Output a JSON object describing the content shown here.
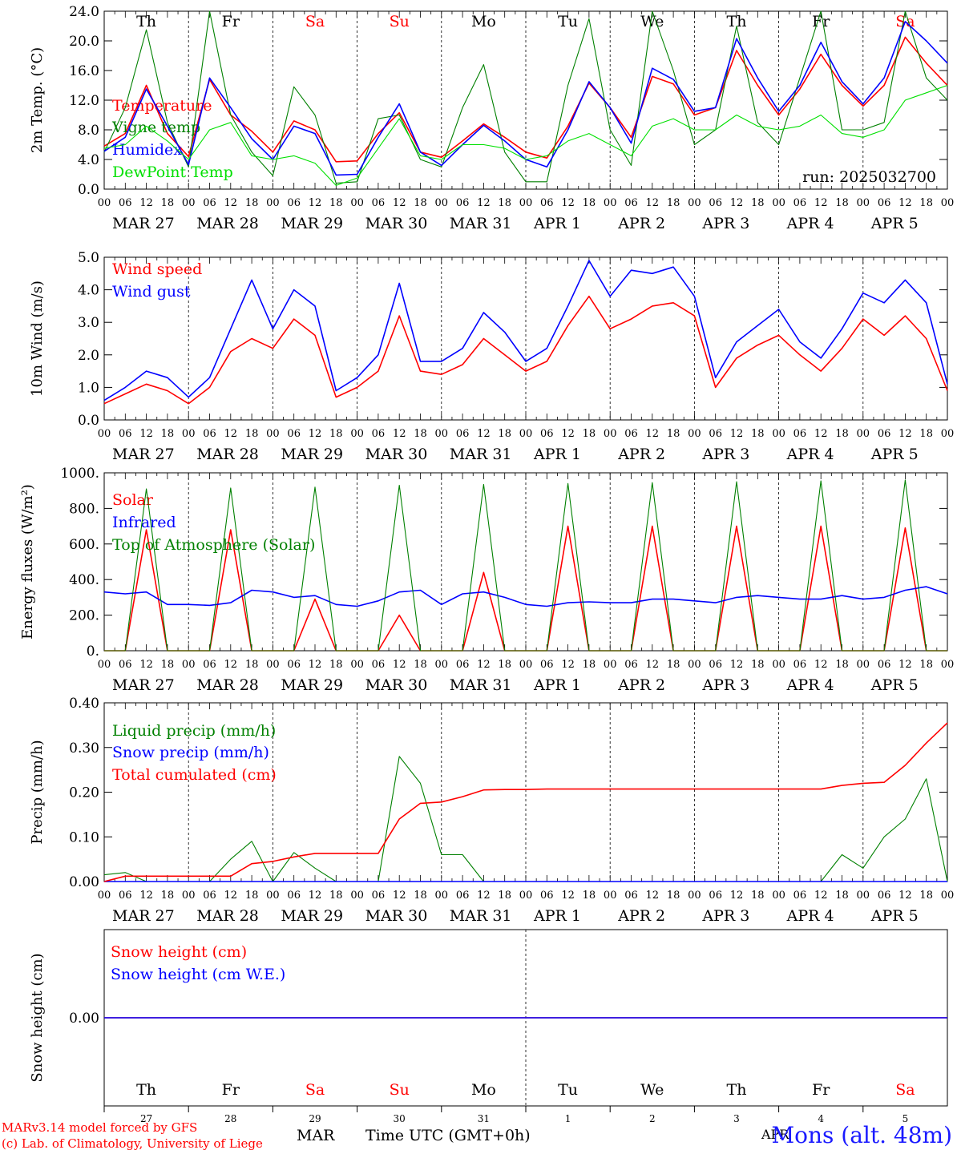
{
  "run_label": "run: 2025032700",
  "station": "Mons (alt. 48m)",
  "footer": {
    "model": "MARv3.14 model forced by GFS",
    "lab": "(c) Lab. of Climatology, University of Liege",
    "month_left": "MAR",
    "month_right": "APR",
    "time_axis": "Time UTC (GMT+0h)"
  },
  "days": [
    {
      "dow": "Th",
      "date": "MAR 27",
      "num": "27",
      "weekend": false
    },
    {
      "dow": "Fr",
      "date": "MAR 28",
      "num": "28",
      "weekend": false
    },
    {
      "dow": "Sa",
      "date": "MAR 29",
      "num": "29",
      "weekend": true
    },
    {
      "dow": "Su",
      "date": "MAR 30",
      "num": "30",
      "weekend": true
    },
    {
      "dow": "Mo",
      "date": "MAR 31",
      "num": "31",
      "weekend": false
    },
    {
      "dow": "Tu",
      "date": "APR 1",
      "num": "1",
      "weekend": false
    },
    {
      "dow": "We",
      "date": "APR 2",
      "num": "2",
      "weekend": false
    },
    {
      "dow": "Th",
      "date": "APR 3",
      "num": "3",
      "weekend": false
    },
    {
      "dow": "Fr",
      "date": "APR 4",
      "num": "4",
      "weekend": false
    },
    {
      "dow": "Sa",
      "date": "APR 5",
      "num": "5",
      "weekend": true
    }
  ],
  "hour_ticks": [
    "00",
    "06",
    "12",
    "18"
  ],
  "hour_end": "00",
  "colors": {
    "red": "#ff0000",
    "blue": "#0000ff",
    "green": "#008000",
    "lightgreen": "#00e000",
    "weekend": "#ff0000",
    "text": "#000000"
  },
  "chart_data": [
    {
      "type": "line",
      "ylabel": "2m Temp. (°C)",
      "ylim": [
        0,
        24
      ],
      "yticks": [
        "0.0",
        "4.0",
        "8.0",
        "12.0",
        "16.0",
        "20.0",
        "24.0"
      ],
      "x_hours": [
        0,
        6,
        12,
        18,
        24,
        30,
        36,
        42,
        48,
        54,
        60,
        66,
        72,
        78,
        84,
        90,
        96,
        102,
        108,
        114,
        120,
        126,
        132,
        138,
        144,
        150,
        156,
        162,
        168,
        174,
        180,
        186,
        192,
        198,
        204,
        210,
        216,
        222,
        228,
        234,
        240
      ],
      "series": [
        {
          "name": "Temperature",
          "color": "red",
          "values": [
            5.8,
            7.5,
            14,
            7.5,
            4.4,
            14.8,
            10,
            7.8,
            5.0,
            9.2,
            8.0,
            3.7,
            3.8,
            7.5,
            10.3,
            5.0,
            4.3,
            6.5,
            8.8,
            7.0,
            5.0,
            4.2,
            8.5,
            14.3,
            11,
            7.0,
            15.2,
            14.2,
            10.0,
            11.0,
            18.7,
            14,
            10.0,
            13.5,
            18.2,
            14,
            11.2,
            14,
            20.5,
            17,
            14
          ]
        },
        {
          "name": "Vigne temp",
          "color": "green",
          "values": [
            5.0,
            11,
            21.5,
            9,
            3.0,
            24,
            10,
            5,
            1.8,
            13.8,
            10,
            0.8,
            1.0,
            9.5,
            10,
            4.0,
            3.0,
            11,
            16.8,
            5,
            1.0,
            1.0,
            14,
            23,
            8,
            3.2,
            24,
            16,
            6.0,
            8,
            22,
            9,
            6.0,
            15,
            24,
            8,
            8,
            9,
            24,
            15,
            12
          ]
        },
        {
          "name": "Humidex",
          "color": "blue",
          "values": [
            5.1,
            7,
            13.5,
            8.5,
            3.3,
            15,
            11,
            6.8,
            4.0,
            8.5,
            7.5,
            1.9,
            2.0,
            7.0,
            11.5,
            5,
            3.2,
            6,
            8.6,
            6.5,
            4.0,
            3.0,
            8,
            14.5,
            11,
            6.2,
            16.3,
            14.8,
            10.5,
            11,
            20.3,
            15,
            10.5,
            14,
            19.8,
            14.5,
            11.5,
            15,
            22.6,
            20,
            17
          ]
        },
        {
          "name": "DewPoint Temp",
          "color": "lightgreen",
          "values": [
            5.5,
            6,
            8.5,
            6.5,
            4.0,
            8,
            9,
            4.5,
            4.0,
            4.5,
            3.5,
            0.5,
            1.5,
            5.5,
            9.5,
            4.5,
            4.0,
            6,
            6,
            5.5,
            4.0,
            4.5,
            6.5,
            7.5,
            6,
            4.5,
            8.5,
            9.5,
            8.0,
            8,
            10,
            8.5,
            8.0,
            8.5,
            10,
            7.5,
            7.0,
            8,
            12,
            13,
            14
          ]
        }
      ]
    },
    {
      "type": "line",
      "ylabel": "10m Wind (m/s)",
      "ylim": [
        0,
        5
      ],
      "yticks": [
        "0.0",
        "1.0",
        "2.0",
        "3.0",
        "4.0",
        "5.0"
      ],
      "x_hours": [
        0,
        6,
        12,
        18,
        24,
        30,
        36,
        42,
        48,
        54,
        60,
        66,
        72,
        78,
        84,
        90,
        96,
        102,
        108,
        114,
        120,
        126,
        132,
        138,
        144,
        150,
        156,
        162,
        168,
        174,
        180,
        186,
        192,
        198,
        204,
        210,
        216,
        222,
        228,
        234,
        240
      ],
      "series": [
        {
          "name": "Wind speed",
          "color": "red",
          "values": [
            0.5,
            0.8,
            1.1,
            0.9,
            0.5,
            1.0,
            2.1,
            2.5,
            2.2,
            3.1,
            2.6,
            0.7,
            1.0,
            1.5,
            3.2,
            1.5,
            1.4,
            1.7,
            2.5,
            2.0,
            1.5,
            1.8,
            2.9,
            3.8,
            2.8,
            3.1,
            3.5,
            3.6,
            3.2,
            1.0,
            1.9,
            2.3,
            2.6,
            2.0,
            1.5,
            2.2,
            3.1,
            2.6,
            3.2,
            2.5,
            0.9
          ]
        },
        {
          "name": "Wind gust",
          "color": "blue",
          "values": [
            0.6,
            1.0,
            1.5,
            1.3,
            0.7,
            1.3,
            2.8,
            4.3,
            2.8,
            4.0,
            3.5,
            0.9,
            1.3,
            2.0,
            4.2,
            1.8,
            1.8,
            2.2,
            3.3,
            2.7,
            1.8,
            2.2,
            3.5,
            4.9,
            3.8,
            4.6,
            4.5,
            4.7,
            3.8,
            1.3,
            2.4,
            2.9,
            3.4,
            2.4,
            1.9,
            2.8,
            3.9,
            3.6,
            4.3,
            3.6,
            1.1
          ]
        }
      ]
    },
    {
      "type": "line",
      "ylabel": "Energy fluxes (W/m²)",
      "ylim": [
        0,
        1000
      ],
      "yticks": [
        "0.",
        "200.",
        "400.",
        "600.",
        "800.",
        "1000."
      ],
      "x_hours": [
        0,
        6,
        12,
        18,
        24,
        30,
        36,
        42,
        48,
        54,
        60,
        66,
        72,
        78,
        84,
        90,
        96,
        102,
        108,
        114,
        120,
        126,
        132,
        138,
        144,
        150,
        156,
        162,
        168,
        174,
        180,
        186,
        192,
        198,
        204,
        210,
        216,
        222,
        228,
        234,
        240
      ],
      "series": [
        {
          "name": "Solar",
          "color": "red",
          "values": [
            0,
            0,
            680,
            0,
            0,
            0,
            680,
            0,
            0,
            0,
            290,
            0,
            0,
            0,
            200,
            0,
            0,
            0,
            440,
            0,
            0,
            0,
            700,
            0,
            0,
            0,
            700,
            0,
            0,
            0,
            700,
            0,
            0,
            0,
            700,
            0,
            0,
            0,
            690,
            0,
            0
          ]
        },
        {
          "name": "Infrared",
          "color": "blue",
          "values": [
            330,
            320,
            330,
            260,
            260,
            255,
            270,
            340,
            330,
            300,
            310,
            260,
            250,
            280,
            330,
            340,
            260,
            320,
            330,
            300,
            260,
            250,
            270,
            275,
            270,
            270,
            290,
            290,
            280,
            270,
            300,
            310,
            300,
            290,
            290,
            310,
            290,
            300,
            340,
            360,
            320
          ]
        },
        {
          "name": "Top of Atmosphere (Solar)",
          "color": "green",
          "values": [
            0,
            0,
            910,
            0,
            0,
            0,
            915,
            0,
            0,
            0,
            920,
            0,
            0,
            0,
            930,
            0,
            0,
            0,
            935,
            0,
            0,
            0,
            940,
            0,
            0,
            0,
            945,
            0,
            0,
            0,
            950,
            0,
            0,
            0,
            955,
            0,
            0,
            0,
            960,
            0,
            0
          ]
        }
      ]
    },
    {
      "type": "line",
      "ylabel": "Precip (mm/h)",
      "ylim": [
        0,
        0.4
      ],
      "yticks": [
        "0.00",
        "0.10",
        "0.20",
        "0.30",
        "0.40"
      ],
      "x_hours": [
        0,
        6,
        12,
        18,
        24,
        30,
        36,
        42,
        48,
        54,
        60,
        66,
        72,
        78,
        84,
        90,
        96,
        102,
        108,
        114,
        120,
        126,
        132,
        138,
        144,
        150,
        156,
        162,
        168,
        174,
        180,
        186,
        192,
        198,
        204,
        210,
        216,
        222,
        228,
        234,
        240
      ],
      "series": [
        {
          "name": "Liquid precip (mm/h)",
          "color": "green",
          "values": [
            0.015,
            0.02,
            0.0,
            0.0,
            0.0,
            0.0,
            0.05,
            0.09,
            0.0,
            0.065,
            0.03,
            0.0,
            0.0,
            0.0,
            0.28,
            0.22,
            0.06,
            0.06,
            0.0,
            0.0,
            0.0,
            0.0,
            0.0,
            0.0,
            0.0,
            0.0,
            0.0,
            0.0,
            0.0,
            0.0,
            0.0,
            0.0,
            0.0,
            0.0,
            0.0,
            0.06,
            0.03,
            0.1,
            0.14,
            0.23,
            0.0
          ]
        },
        {
          "name": "Snow precip (mm/h)",
          "color": "blue",
          "values": [
            0,
            0,
            0,
            0,
            0,
            0,
            0,
            0,
            0,
            0,
            0,
            0,
            0,
            0,
            0,
            0,
            0,
            0,
            0,
            0,
            0,
            0,
            0,
            0,
            0,
            0,
            0,
            0,
            0,
            0,
            0,
            0,
            0,
            0,
            0,
            0,
            0,
            0,
            0,
            0,
            0
          ]
        },
        {
          "name": "Total cumulated (cm)",
          "color": "red",
          "values": [
            0.0,
            0.012,
            0.012,
            0.012,
            0.012,
            0.012,
            0.012,
            0.04,
            0.045,
            0.055,
            0.063,
            0.063,
            0.063,
            0.063,
            0.14,
            0.175,
            0.178,
            0.19,
            0.205,
            0.206,
            0.206,
            0.207,
            0.207,
            0.207,
            0.207,
            0.207,
            0.207,
            0.207,
            0.207,
            0.207,
            0.207,
            0.207,
            0.207,
            0.207,
            0.207,
            0.215,
            0.22,
            0.222,
            0.26,
            0.31,
            0.355
          ]
        }
      ]
    },
    {
      "type": "line",
      "ylabel": "Snow height (cm)",
      "ylim": [
        -1,
        1
      ],
      "yticks": [
        "0.00"
      ],
      "x_hours": [
        0,
        240
      ],
      "series": [
        {
          "name": "Snow height (cm)",
          "color": "red",
          "values": [
            0,
            0
          ]
        },
        {
          "name": "Snow height (cm W.E.)",
          "color": "blue",
          "values": [
            0,
            0
          ]
        }
      ]
    }
  ]
}
